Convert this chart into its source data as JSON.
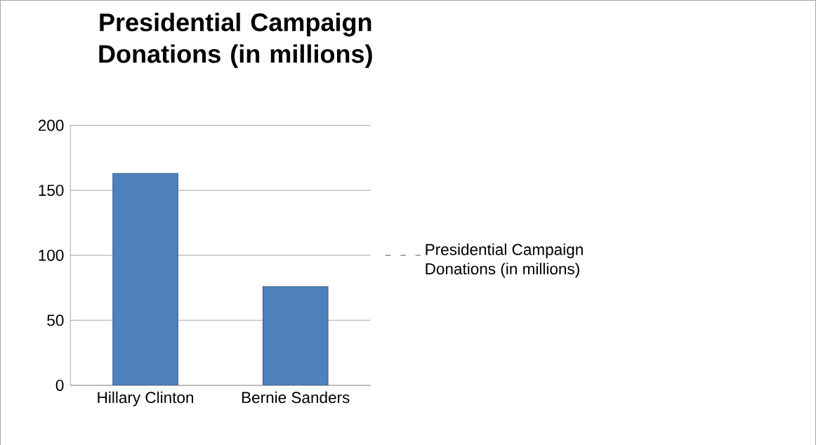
{
  "chart_data": {
    "type": "bar",
    "title": "Presidential Campaign Donations (in millions)",
    "categories": [
      "Hillary Clinton",
      "Bernie Sanders"
    ],
    "series": [
      {
        "name": "Presidential Campaign Donations (in millions)",
        "color": "#4f81bd",
        "values": [
          163,
          76
        ]
      }
    ],
    "ylim": [
      0,
      200
    ],
    "yticks": [
      0,
      50,
      100,
      150,
      200
    ],
    "grid": "y",
    "legend": "right"
  }
}
